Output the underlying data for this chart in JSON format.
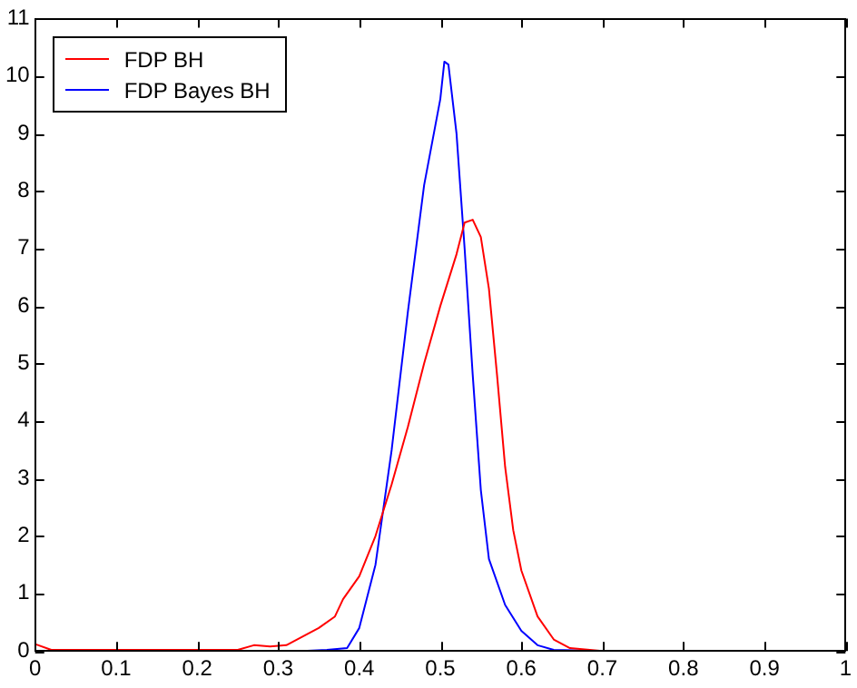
{
  "chart_data": {
    "type": "line",
    "xlim": [
      0,
      1
    ],
    "xticks": [
      0,
      0.1,
      0.2,
      0.3,
      0.4,
      0.5,
      0.6,
      0.7,
      0.8,
      0.9,
      1
    ],
    "ylim": [
      0,
      11
    ],
    "yticks": [
      0,
      1,
      2,
      3,
      4,
      5,
      6,
      7,
      8,
      9,
      10,
      11
    ],
    "grid": false,
    "legend": "top left",
    "marker": "none",
    "line_style": "solid",
    "series": [
      {
        "name": "FDP BH",
        "color": "#ff0000",
        "x": [
          0,
          0.02,
          0.25,
          0.27,
          0.29,
          0.31,
          0.33,
          0.35,
          0.37,
          0.38,
          0.4,
          0.42,
          0.44,
          0.46,
          0.48,
          0.5,
          0.52,
          0.53,
          0.54,
          0.55,
          0.56,
          0.57,
          0.58,
          0.59,
          0.6,
          0.62,
          0.64,
          0.66,
          0.7
        ],
        "values": [
          0.12,
          0.02,
          0.02,
          0.1,
          0.08,
          0.1,
          0.25,
          0.4,
          0.6,
          0.9,
          1.3,
          2.0,
          2.9,
          3.9,
          5.0,
          6.0,
          6.9,
          7.45,
          7.5,
          7.2,
          6.3,
          4.8,
          3.2,
          2.1,
          1.4,
          0.6,
          0.2,
          0.05,
          0
        ]
      },
      {
        "name": "FDP Bayes BH",
        "color": "#0000ff",
        "x": [
          0.33,
          0.36,
          0.385,
          0.4,
          0.42,
          0.44,
          0.46,
          0.48,
          0.5,
          0.505,
          0.51,
          0.52,
          0.53,
          0.54,
          0.55,
          0.56,
          0.58,
          0.6,
          0.62,
          0.64,
          0.7
        ],
        "values": [
          0,
          0.02,
          0.05,
          0.4,
          1.5,
          3.5,
          5.9,
          8.1,
          9.6,
          10.25,
          10.2,
          9.0,
          7.0,
          4.8,
          2.8,
          1.6,
          0.8,
          0.35,
          0.1,
          0.02,
          0
        ]
      }
    ]
  }
}
